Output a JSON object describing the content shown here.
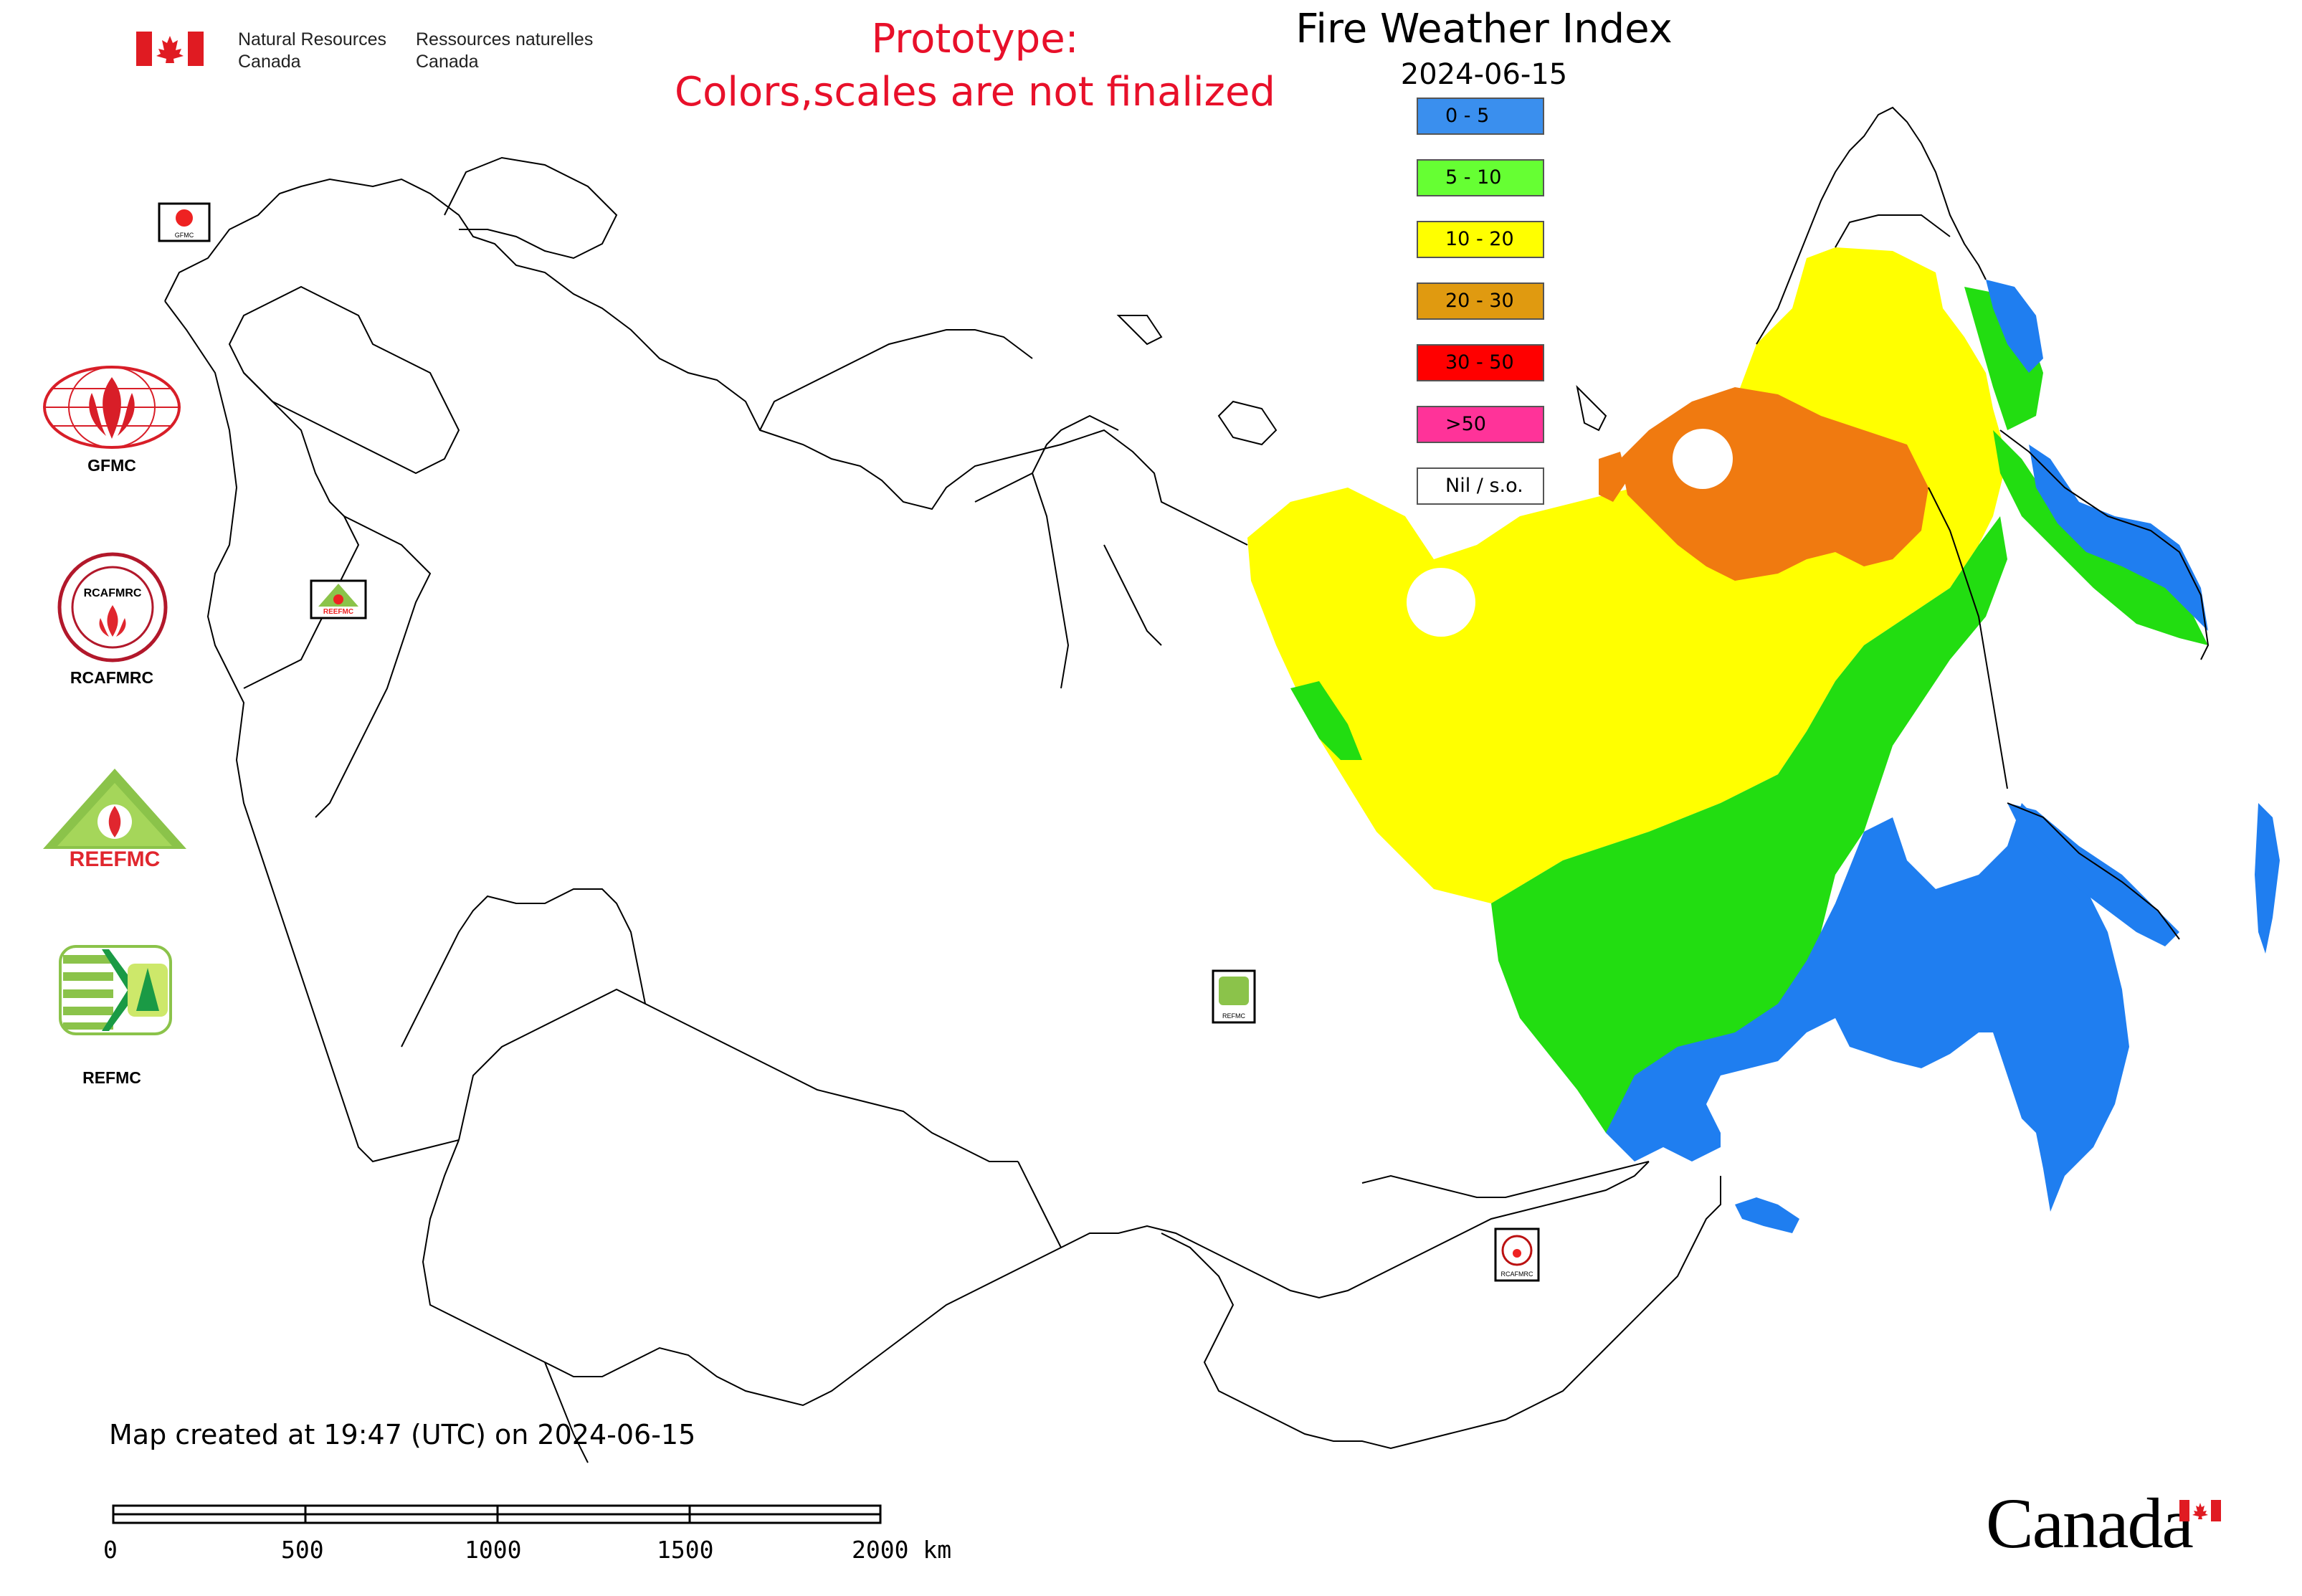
{
  "header": {
    "department_en_line1": "Natural Resources",
    "department_en_line2": "Canada",
    "department_fr_line1": "Ressources naturelles",
    "department_fr_line2": "Canada",
    "prototype_line1": "Prototype:",
    "prototype_line2": "Colors,scales are not finalized"
  },
  "map": {
    "title": "Fire Weather Index",
    "date": "2024-06-15",
    "legend": [
      {
        "label": "0 - 5",
        "color": "#3a8fee"
      },
      {
        "label": "5 - 10",
        "color": "#66ff33"
      },
      {
        "label": "10 - 20",
        "color": "#ffff00"
      },
      {
        "label": "20 - 30",
        "color": "#e09a10"
      },
      {
        "label": "30 - 50",
        "color": "#ff0000"
      },
      {
        "label": ">50",
        "color": "#ff3399"
      },
      {
        "label": "Nil / s.o.",
        "color": "#ffffff"
      }
    ],
    "fill_colors": {
      "class_0_5": "#1f7ef0",
      "class_5_10": "#22dd11",
      "class_10_20": "#ffff00",
      "class_20_30": "#f07a10"
    }
  },
  "logos": {
    "gfmc": "GFMC",
    "rcafmrc": "RCAFMRC",
    "rcafmrc_inner": "RCAFMRC",
    "reefmc": "REEFMC",
    "refmc": "REFMC",
    "map_marker_gfmc": "GFMC",
    "map_marker_reefmc": "REEFMC",
    "map_marker_refmc": "REFMC",
    "map_marker_rcafmrc": "RCAFMRC"
  },
  "footer": {
    "created_note": "Map created at 19:47 (UTC) on 2024-06-15",
    "scale_ticks": [
      "0",
      "500",
      "1000",
      "1500",
      "2000 km"
    ],
    "canada_wordmark": "Canada"
  }
}
